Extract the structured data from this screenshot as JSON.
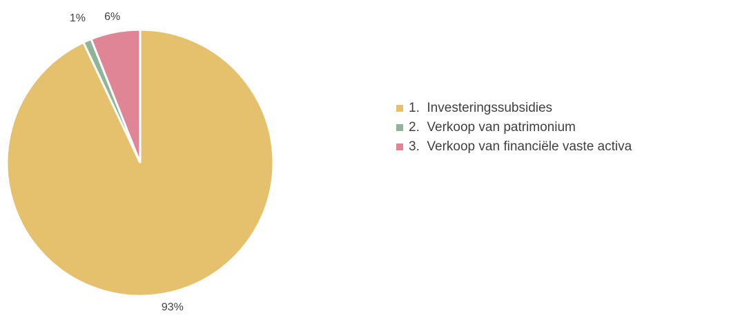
{
  "chart_data": {
    "type": "pie",
    "categories": [
      "1.  Investeringssubsidies",
      "2.  Verkoop van patrimonium",
      "3.  Verkoop van financiële vaste activa"
    ],
    "values": [
      93,
      1,
      6
    ],
    "value_labels": [
      "93%",
      "1%",
      "6%"
    ],
    "colors": [
      "#e5c06d",
      "#8fb49a",
      "#e08595"
    ],
    "legend": "right"
  }
}
